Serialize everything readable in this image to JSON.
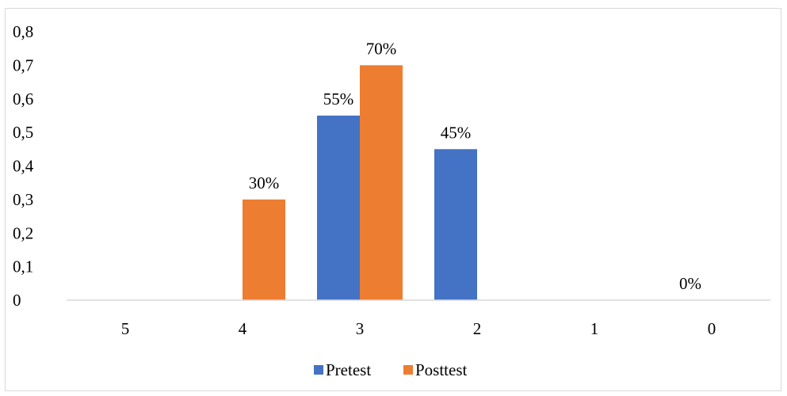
{
  "chart_data": {
    "type": "bar",
    "title": "",
    "xlabel": "",
    "ylabel": "",
    "categories": [
      "5",
      "4",
      "3",
      "2",
      "1",
      "0"
    ],
    "series": [
      {
        "name": "Pretest",
        "color": "#4472C4",
        "values": [
          0,
          0,
          0.55,
          0.45,
          0,
          0
        ],
        "data_labels": [
          "",
          "",
          "55%",
          "45%",
          "",
          "0%"
        ]
      },
      {
        "name": "Posttest",
        "color": "#ED7D31",
        "values": [
          0,
          0.3,
          0.7,
          0,
          0,
          0
        ],
        "data_labels": [
          "",
          "30%",
          "70%",
          "",
          "",
          ""
        ]
      }
    ],
    "y_ticks": [
      "0",
      "0,1",
      "0,2",
      "0,3",
      "0,4",
      "0,5",
      "0,6",
      "0,7",
      "0,8"
    ],
    "ylim": [
      0,
      0.8
    ],
    "grid": false,
    "legend_position": "bottom"
  }
}
